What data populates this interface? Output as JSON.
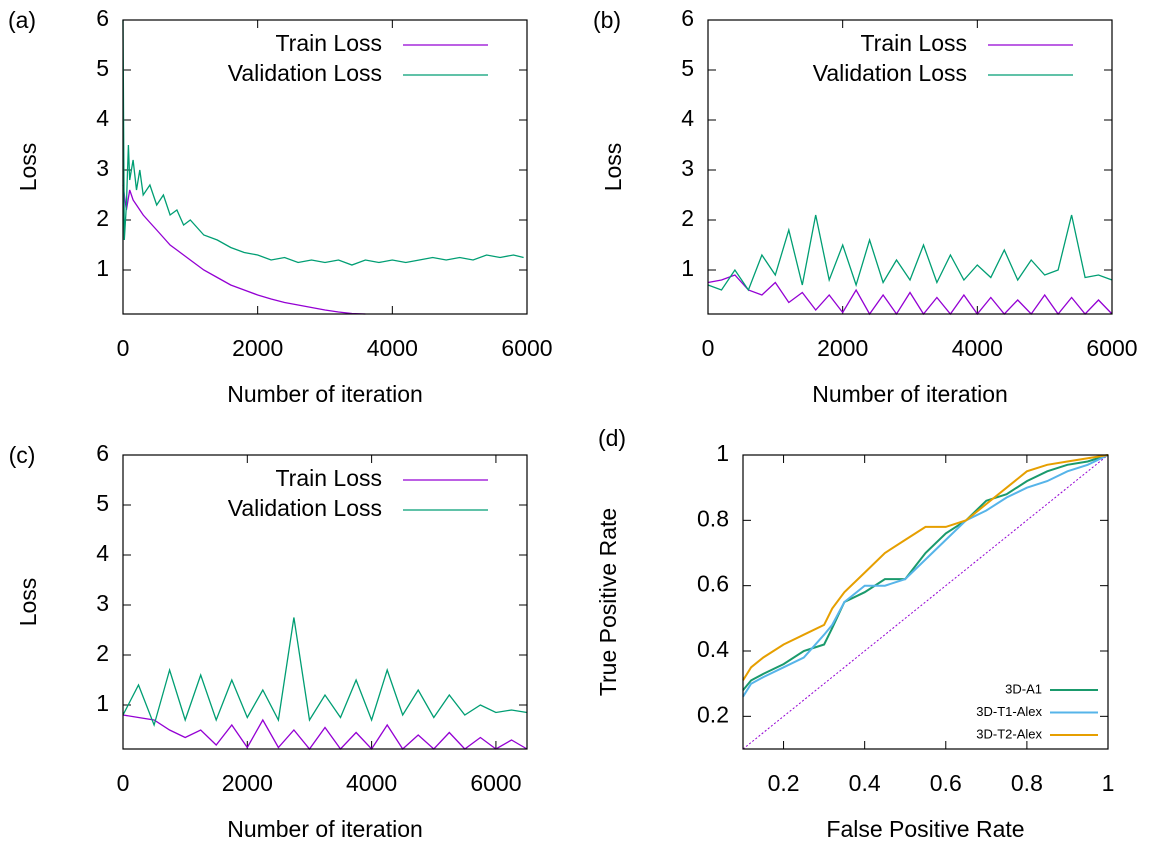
{
  "chart_data": [
    {
      "type": "line",
      "panel_label": "(a)",
      "xlabel": "Number of iteration",
      "ylabel": "Loss",
      "xlim": [
        0,
        6000
      ],
      "ylim": [
        0.12,
        6
      ],
      "xticks": [
        0,
        2000,
        4000,
        6000
      ],
      "yticks": [
        1,
        2,
        3,
        4,
        5,
        6
      ],
      "legend": "top-right",
      "series": [
        {
          "name": "Train Loss",
          "color": "#9400d3",
          "x": [
            0,
            50,
            100,
            150,
            200,
            300,
            400,
            500,
            600,
            700,
            800,
            900,
            1000,
            1200,
            1400,
            1600,
            1800,
            2000,
            2200,
            2400,
            2600,
            2800,
            3000,
            3200,
            3400,
            3600
          ],
          "values": [
            2.7,
            2.2,
            2.6,
            2.4,
            2.3,
            2.1,
            1.95,
            1.8,
            1.65,
            1.5,
            1.4,
            1.3,
            1.2,
            1.0,
            0.85,
            0.7,
            0.6,
            0.5,
            0.42,
            0.35,
            0.3,
            0.25,
            0.2,
            0.16,
            0.13,
            0.12
          ]
        },
        {
          "name": "Validation Loss",
          "color": "#009e73",
          "x": [
            0,
            20,
            50,
            80,
            100,
            150,
            200,
            250,
            300,
            400,
            500,
            600,
            700,
            800,
            900,
            1000,
            1200,
            1400,
            1600,
            1800,
            2000,
            2200,
            2400,
            2600,
            2800,
            3000,
            3200,
            3400,
            3600,
            3800,
            4000,
            4200,
            4400,
            4600,
            4800,
            5000,
            5200,
            5400,
            5600,
            5800,
            5950
          ],
          "values": [
            6,
            1.6,
            2.3,
            3.5,
            2.8,
            3.2,
            2.6,
            3.0,
            2.5,
            2.7,
            2.3,
            2.5,
            2.1,
            2.2,
            1.9,
            2.0,
            1.7,
            1.6,
            1.45,
            1.35,
            1.3,
            1.2,
            1.25,
            1.15,
            1.2,
            1.15,
            1.2,
            1.1,
            1.2,
            1.15,
            1.2,
            1.15,
            1.2,
            1.25,
            1.2,
            1.25,
            1.2,
            1.3,
            1.25,
            1.3,
            1.25
          ]
        }
      ]
    },
    {
      "type": "line",
      "panel_label": "(b)",
      "xlabel": "Number of iteration",
      "ylabel": "Loss",
      "xlim": [
        0,
        6000
      ],
      "ylim": [
        0.12,
        6
      ],
      "xticks": [
        0,
        2000,
        4000,
        6000
      ],
      "yticks": [
        1,
        2,
        3,
        4,
        5,
        6
      ],
      "legend": "top-right",
      "series": [
        {
          "name": "Train Loss",
          "color": "#9400d3",
          "x": [
            0,
            200,
            400,
            600,
            800,
            1000,
            1200,
            1400,
            1600,
            1800,
            2000,
            2200,
            2400,
            2600,
            2800,
            3000,
            3200,
            3400,
            3600,
            3800,
            4000,
            4200,
            4400,
            4600,
            4800,
            5000,
            5200,
            5400,
            5600,
            5800,
            6000
          ],
          "values": [
            0.75,
            0.8,
            0.9,
            0.6,
            0.5,
            0.75,
            0.35,
            0.55,
            0.2,
            0.5,
            0.15,
            0.6,
            0.12,
            0.5,
            0.12,
            0.55,
            0.12,
            0.45,
            0.12,
            0.5,
            0.12,
            0.45,
            0.12,
            0.4,
            0.12,
            0.5,
            0.12,
            0.45,
            0.12,
            0.4,
            0.12
          ]
        },
        {
          "name": "Validation Loss",
          "color": "#009e73",
          "x": [
            0,
            200,
            400,
            600,
            800,
            1000,
            1200,
            1400,
            1600,
            1800,
            2000,
            2200,
            2400,
            2600,
            2800,
            3000,
            3200,
            3400,
            3600,
            3800,
            4000,
            4200,
            4400,
            4600,
            4800,
            5000,
            5200,
            5400,
            5600,
            5800,
            6000
          ],
          "values": [
            0.7,
            0.6,
            1.0,
            0.6,
            1.3,
            0.9,
            1.8,
            0.7,
            2.1,
            0.8,
            1.5,
            0.7,
            1.6,
            0.75,
            1.2,
            0.8,
            1.5,
            0.75,
            1.3,
            0.8,
            1.1,
            0.85,
            1.4,
            0.8,
            1.2,
            0.9,
            1.0,
            2.1,
            0.85,
            0.9,
            0.8
          ]
        }
      ]
    },
    {
      "type": "line",
      "panel_label": "(c)",
      "xlabel": "Number of iteration",
      "ylabel": "Loss",
      "xlim": [
        0,
        6500
      ],
      "ylim": [
        0.12,
        6
      ],
      "xticks": [
        0,
        2000,
        4000,
        6000
      ],
      "yticks": [
        1,
        2,
        3,
        4,
        5,
        6
      ],
      "legend": "top-right",
      "series": [
        {
          "name": "Train Loss",
          "color": "#9400d3",
          "x": [
            0,
            250,
            500,
            750,
            1000,
            1250,
            1500,
            1750,
            2000,
            2250,
            2500,
            2750,
            3000,
            3250,
            3500,
            3750,
            4000,
            4250,
            4500,
            4750,
            5000,
            5250,
            5500,
            5750,
            6000,
            6250,
            6500
          ],
          "values": [
            0.8,
            0.75,
            0.7,
            0.5,
            0.35,
            0.5,
            0.2,
            0.6,
            0.15,
            0.7,
            0.15,
            0.5,
            0.12,
            0.55,
            0.12,
            0.45,
            0.12,
            0.6,
            0.12,
            0.4,
            0.12,
            0.45,
            0.12,
            0.35,
            0.12,
            0.3,
            0.12
          ]
        },
        {
          "name": "Validation Loss",
          "color": "#009e73",
          "x": [
            0,
            250,
            500,
            750,
            1000,
            1250,
            1500,
            1750,
            2000,
            2250,
            2500,
            2750,
            3000,
            3250,
            3500,
            3750,
            4000,
            4250,
            4500,
            4750,
            5000,
            5250,
            5500,
            5750,
            6000,
            6250,
            6500
          ],
          "values": [
            0.8,
            1.4,
            0.6,
            1.7,
            0.7,
            1.6,
            0.7,
            1.5,
            0.75,
            1.3,
            0.7,
            2.75,
            0.7,
            1.2,
            0.75,
            1.5,
            0.7,
            1.7,
            0.8,
            1.3,
            0.75,
            1.2,
            0.8,
            1.0,
            0.85,
            0.9,
            0.85
          ]
        }
      ]
    },
    {
      "type": "roc",
      "panel_label": "(d)",
      "xlabel": "False Positive Rate",
      "ylabel": "True Positive Rate",
      "xlim": [
        0.1,
        1
      ],
      "ylim": [
        0.1,
        1
      ],
      "xticks": [
        0.2,
        0.4,
        0.6,
        0.8,
        1
      ],
      "yticks": [
        0.2,
        0.4,
        0.6,
        0.8,
        1
      ],
      "legend": "bottom-right",
      "diagonal": {
        "color": "#9400d3",
        "x": [
          0.1,
          1
        ],
        "values": [
          0.1,
          1
        ]
      },
      "series": [
        {
          "name": "3D-A1",
          "color": "#1a9a6c",
          "x": [
            0.1,
            0.12,
            0.15,
            0.2,
            0.25,
            0.3,
            0.32,
            0.35,
            0.4,
            0.45,
            0.5,
            0.55,
            0.6,
            0.65,
            0.7,
            0.75,
            0.8,
            0.85,
            0.9,
            0.95,
            1
          ],
          "values": [
            0.28,
            0.31,
            0.33,
            0.36,
            0.4,
            0.42,
            0.47,
            0.55,
            0.58,
            0.62,
            0.62,
            0.7,
            0.76,
            0.8,
            0.86,
            0.88,
            0.92,
            0.95,
            0.97,
            0.98,
            1
          ]
        },
        {
          "name": "3D-T1-Alex",
          "color": "#56b4e9",
          "x": [
            0.1,
            0.12,
            0.15,
            0.2,
            0.25,
            0.3,
            0.32,
            0.35,
            0.4,
            0.45,
            0.5,
            0.55,
            0.6,
            0.65,
            0.7,
            0.75,
            0.8,
            0.85,
            0.9,
            0.95,
            1
          ],
          "values": [
            0.26,
            0.3,
            0.32,
            0.35,
            0.38,
            0.45,
            0.48,
            0.55,
            0.6,
            0.6,
            0.62,
            0.68,
            0.74,
            0.8,
            0.83,
            0.87,
            0.9,
            0.92,
            0.95,
            0.97,
            1
          ]
        },
        {
          "name": "3D-T2-Alex",
          "color": "#e69f00",
          "x": [
            0.1,
            0.12,
            0.15,
            0.2,
            0.25,
            0.3,
            0.32,
            0.35,
            0.4,
            0.45,
            0.5,
            0.55,
            0.6,
            0.65,
            0.7,
            0.75,
            0.8,
            0.85,
            0.9,
            0.95,
            1
          ],
          "values": [
            0.31,
            0.35,
            0.38,
            0.42,
            0.45,
            0.48,
            0.53,
            0.58,
            0.64,
            0.7,
            0.74,
            0.78,
            0.78,
            0.8,
            0.85,
            0.9,
            0.95,
            0.97,
            0.98,
            0.99,
            1
          ]
        }
      ]
    }
  ]
}
